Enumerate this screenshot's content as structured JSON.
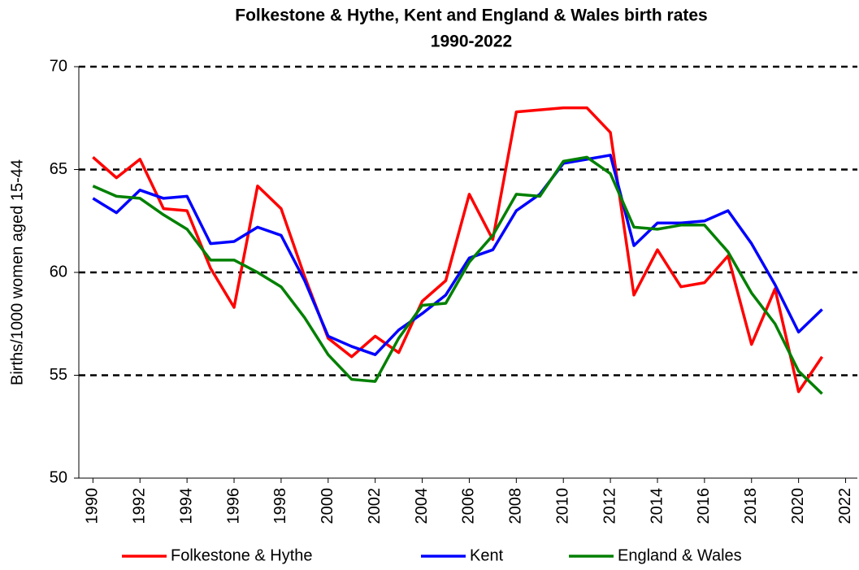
{
  "chart_data": {
    "type": "line",
    "title": [
      "Folkestone & Hythe, Kent and England & Wales birth rates",
      "1990-2022"
    ],
    "y_label": "Births/1000 women aged 15-44",
    "x": [
      1990,
      1991,
      1992,
      1993,
      1994,
      1995,
      1996,
      1997,
      1998,
      1999,
      2000,
      2001,
      2002,
      2003,
      2004,
      2005,
      2006,
      2007,
      2008,
      2009,
      2010,
      2011,
      2012,
      2013,
      2014,
      2015,
      2016,
      2017,
      2018,
      2019,
      2020,
      2021
    ],
    "series": [
      {
        "name": "Folkestone & Hythe",
        "color": "#ff0000",
        "values": [
          65.6,
          64.6,
          65.5,
          63.1,
          63.0,
          60.2,
          58.3,
          64.2,
          63.1,
          59.8,
          56.8,
          55.9,
          56.9,
          56.1,
          58.6,
          59.6,
          63.8,
          61.6,
          67.8,
          67.9,
          68.0,
          68.0,
          66.8,
          58.9,
          61.1,
          59.3,
          59.5,
          60.8,
          56.5,
          59.2,
          54.2,
          55.9
        ]
      },
      {
        "name": "Kent",
        "color": "#0000ff",
        "values": [
          63.6,
          62.9,
          64.0,
          63.6,
          63.7,
          61.4,
          61.5,
          62.2,
          61.8,
          59.6,
          56.9,
          56.4,
          56.0,
          57.2,
          58.0,
          58.9,
          60.7,
          61.1,
          63.0,
          63.8,
          65.3,
          65.5,
          65.7,
          61.3,
          62.4,
          62.4,
          62.5,
          63.0,
          61.4,
          59.4,
          57.1,
          58.2
        ]
      },
      {
        "name": "England & Wales",
        "color": "#008000",
        "values": [
          64.2,
          63.7,
          63.6,
          62.8,
          62.1,
          60.6,
          60.6,
          60.0,
          59.3,
          57.8,
          56.0,
          54.8,
          54.7,
          56.8,
          58.4,
          58.5,
          60.5,
          61.8,
          63.8,
          63.7,
          65.4,
          65.6,
          64.8,
          62.2,
          62.1,
          62.3,
          62.3,
          61.0,
          59.0,
          57.5,
          55.2,
          54.1
        ]
      }
    ],
    "xlim": [
      1989.4,
      2022.5
    ],
    "xticks": [
      1990,
      1992,
      1994,
      1996,
      1998,
      2000,
      2002,
      2004,
      2006,
      2008,
      2010,
      2012,
      2014,
      2016,
      2018,
      2020,
      2022
    ],
    "ylim": [
      50,
      70
    ],
    "yticks": [
      50,
      55,
      60,
      65,
      70
    ],
    "grid": true,
    "legend": "bottom"
  }
}
